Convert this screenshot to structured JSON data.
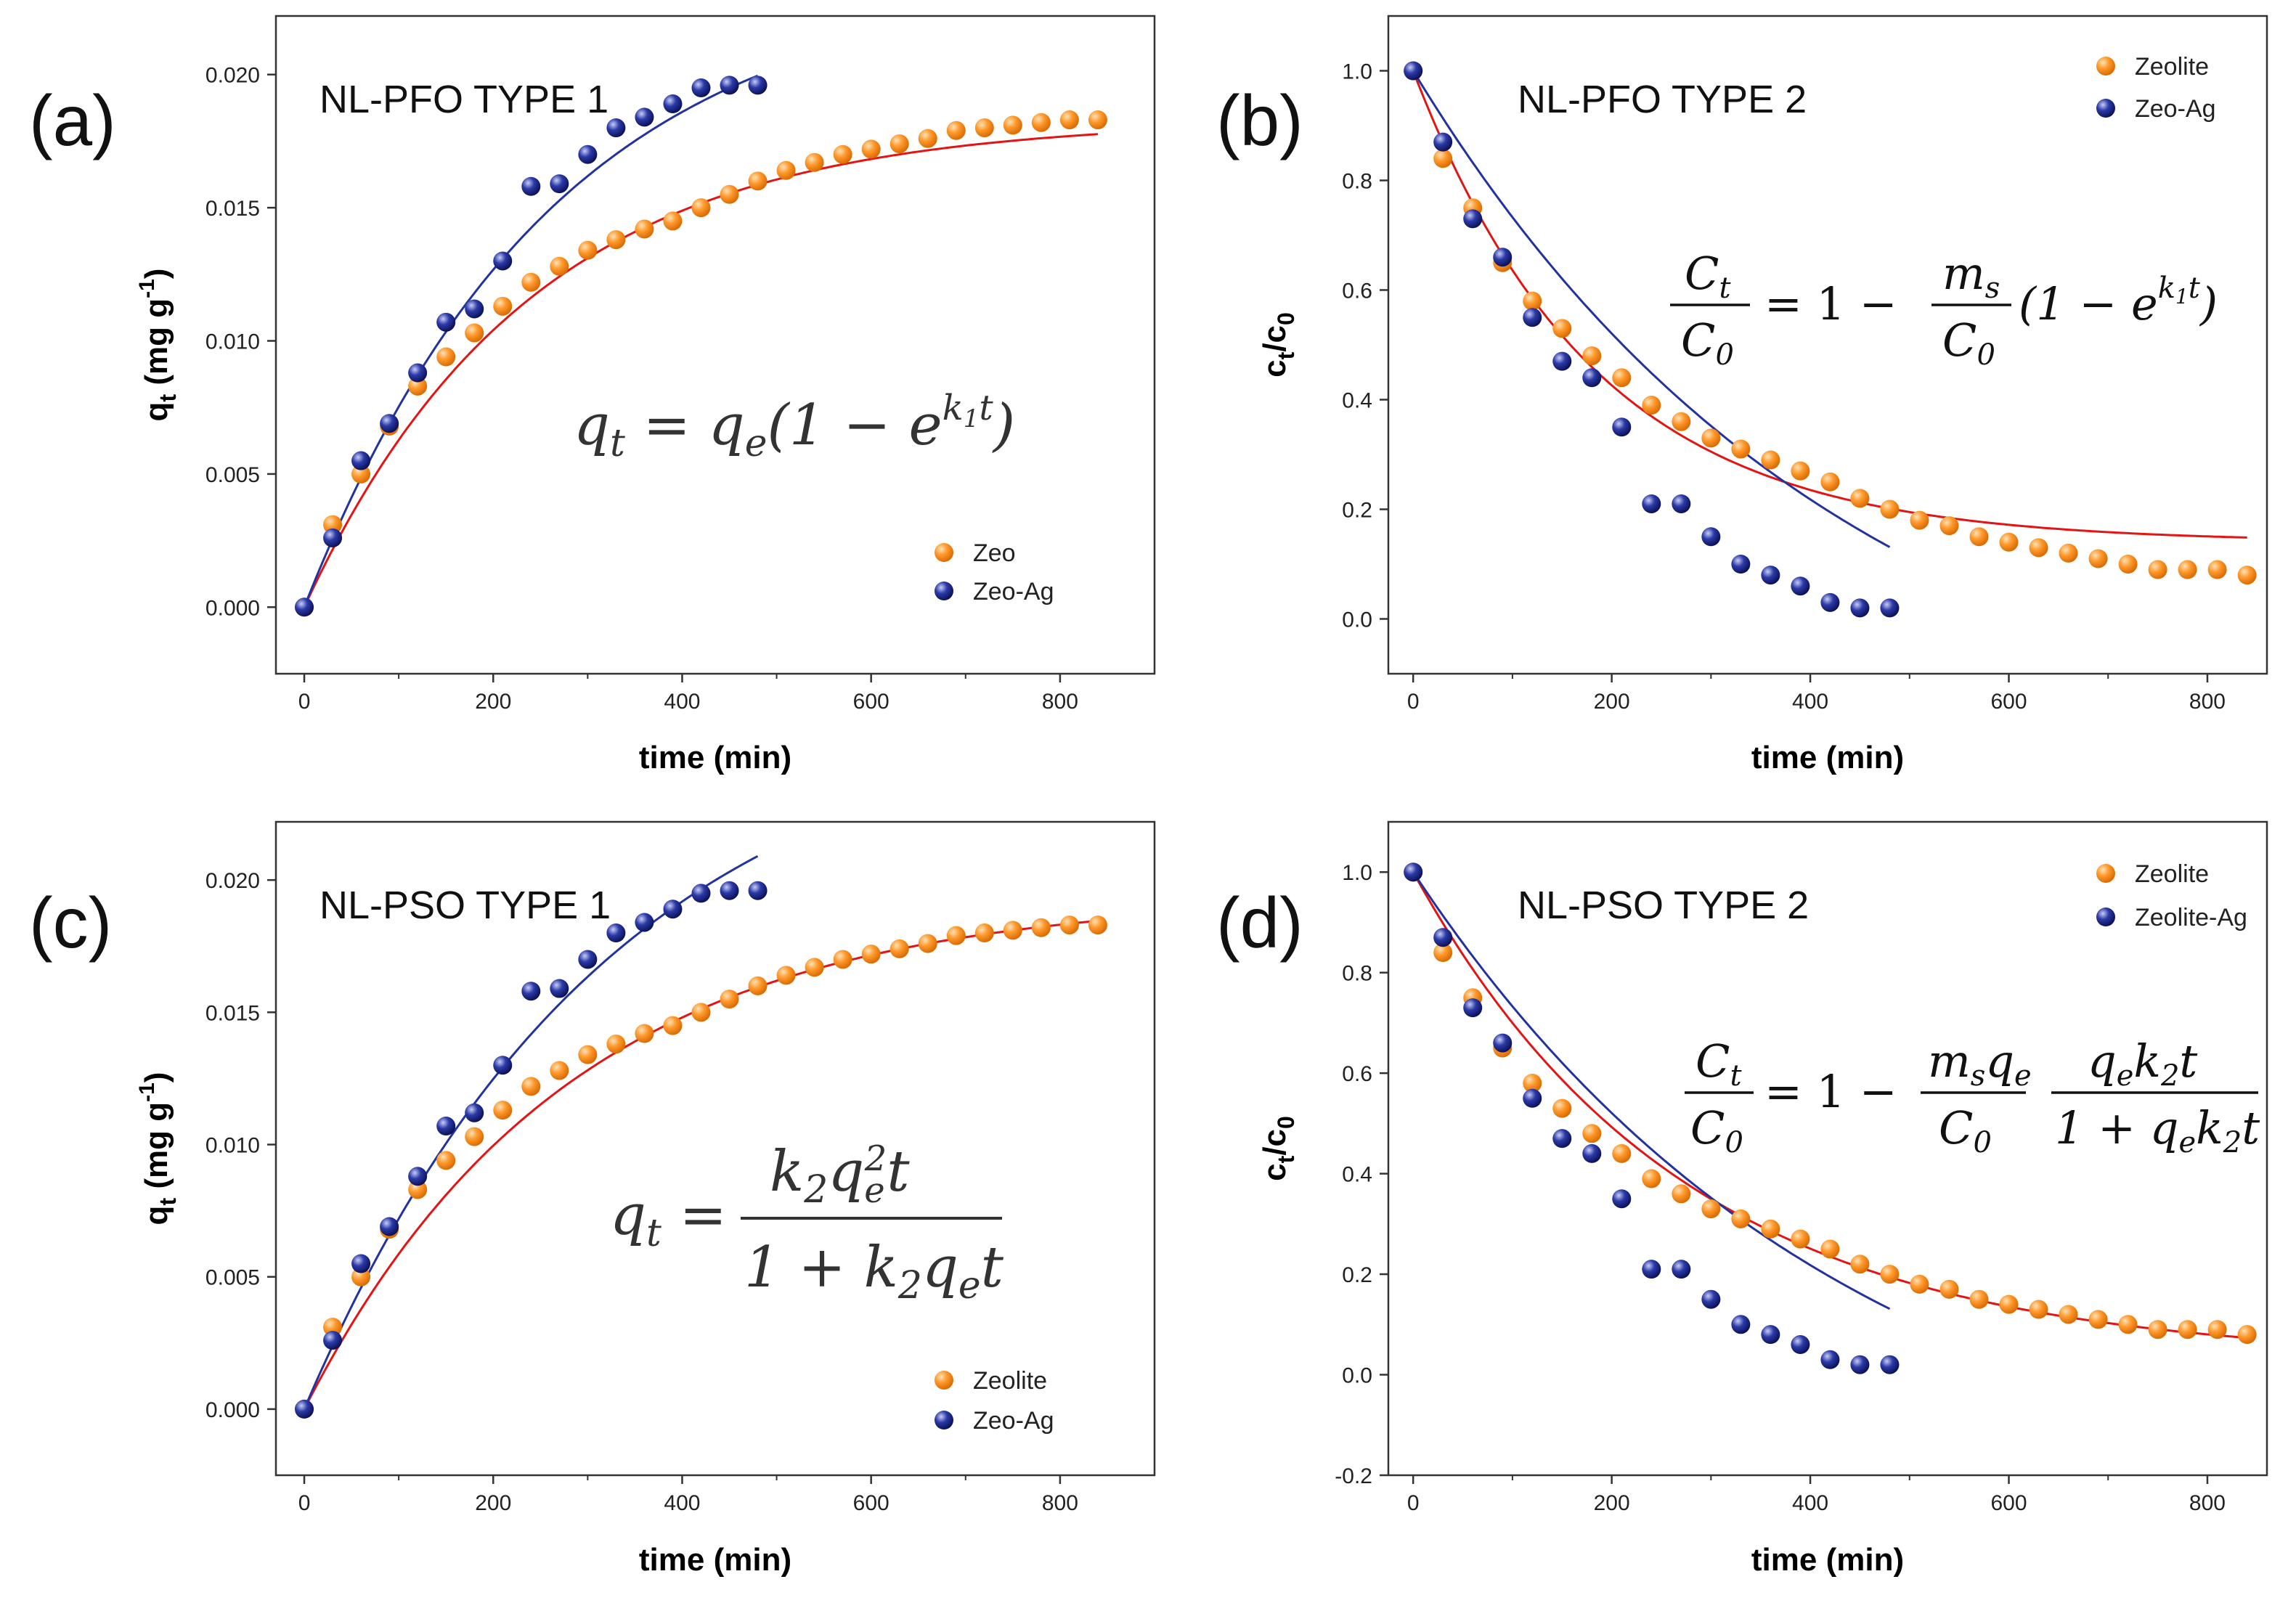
{
  "chart_data": [
    {
      "id": "a",
      "type": "scatter",
      "panel_label": "(a)",
      "title": "NL-PFO TYPE 1",
      "xlabel": "time (min)",
      "ylabel": "q_t (mg g^-1)",
      "xlim": [
        -30,
        900
      ],
      "ylim": [
        -0.0025,
        0.0222
      ],
      "xticks": [
        0,
        200,
        400,
        600,
        800
      ],
      "yticks": [
        0.0,
        0.005,
        0.01,
        0.015,
        0.02
      ],
      "ytick_decimals": 3,
      "legend_position": "bottom-right",
      "equation": "q_t = q_e(1 − e^{k1 t})",
      "series": [
        {
          "name": "Zeo",
          "color": "#ff8c1a",
          "x": [
            0,
            30,
            60,
            90,
            120,
            150,
            180,
            210,
            240,
            270,
            300,
            330,
            360,
            390,
            420,
            450,
            480,
            510,
            540,
            570,
            600,
            630,
            660,
            690,
            720,
            750,
            780,
            810,
            840
          ],
          "y": [
            0.0,
            0.0031,
            0.005,
            0.0068,
            0.0083,
            0.0094,
            0.0103,
            0.0113,
            0.0122,
            0.0128,
            0.0134,
            0.0138,
            0.0142,
            0.0145,
            0.015,
            0.0155,
            0.016,
            0.0164,
            0.0167,
            0.017,
            0.0172,
            0.0174,
            0.0176,
            0.0179,
            0.018,
            0.0181,
            0.0182,
            0.0183,
            0.0183
          ],
          "fit": {
            "model": "pfo",
            "a": 0.0183,
            "k": 0.0042,
            "xmax": 840,
            "color": "#e31414"
          }
        },
        {
          "name": "Zeo-Ag",
          "color": "#1a237e",
          "x": [
            0,
            30,
            60,
            90,
            120,
            150,
            180,
            210,
            240,
            270,
            300,
            330,
            360,
            390,
            420,
            450,
            480
          ],
          "y": [
            0.0,
            0.0026,
            0.0055,
            0.0069,
            0.0088,
            0.0107,
            0.0112,
            0.013,
            0.0158,
            0.0159,
            0.017,
            0.018,
            0.0184,
            0.0189,
            0.0195,
            0.0196,
            0.0196
          ],
          "fit": {
            "model": "pfo",
            "a": 0.0238,
            "k": 0.0038,
            "xmax": 480,
            "color": "#2233a0"
          }
        }
      ]
    },
    {
      "id": "b",
      "type": "scatter",
      "panel_label": "(b)",
      "title": "NL-PFO TYPE 2",
      "xlabel": "time (min)",
      "ylabel": "c_t/c_0",
      "xlim": [
        -25,
        860
      ],
      "ylim": [
        -0.1,
        1.1
      ],
      "xticks": [
        0,
        200,
        400,
        600,
        800
      ],
      "yticks": [
        0.0,
        0.2,
        0.4,
        0.6,
        0.8,
        1.0
      ],
      "ytick_decimals": 1,
      "legend_position": "top-right",
      "equation": "C_t/C_0 = 1 − (m_s/C_0)(1 − e^{k1 t})",
      "series": [
        {
          "name": "Zeolite",
          "color": "#ff8c1a",
          "x": [
            0,
            30,
            60,
            90,
            120,
            150,
            180,
            210,
            240,
            270,
            300,
            330,
            360,
            390,
            420,
            450,
            480,
            510,
            540,
            570,
            600,
            630,
            660,
            690,
            720,
            750,
            780,
            810,
            840
          ],
          "y": [
            1.0,
            0.84,
            0.75,
            0.65,
            0.58,
            0.53,
            0.48,
            0.44,
            0.39,
            0.36,
            0.33,
            0.31,
            0.29,
            0.27,
            0.25,
            0.22,
            0.2,
            0.18,
            0.17,
            0.15,
            0.14,
            0.13,
            0.12,
            0.11,
            0.1,
            0.09,
            0.09,
            0.09,
            0.08
          ],
          "fit": {
            "model": "decay",
            "a": 0.86,
            "k": 0.0055,
            "xmax": 840,
            "color": "#e31414"
          }
        },
        {
          "name": "Zeo-Ag",
          "color": "#1a237e",
          "x": [
            0,
            30,
            60,
            90,
            120,
            150,
            180,
            210,
            240,
            270,
            300,
            330,
            360,
            390,
            420,
            450,
            480
          ],
          "y": [
            1.0,
            0.87,
            0.73,
            0.66,
            0.55,
            0.47,
            0.44,
            0.35,
            0.21,
            0.21,
            0.15,
            0.1,
            0.08,
            0.06,
            0.03,
            0.02,
            0.02
          ],
          "fit": {
            "model": "decay",
            "a": 1.3,
            "k": 0.0023,
            "xmax": 480,
            "color": "#2233a0"
          }
        }
      ]
    },
    {
      "id": "c",
      "type": "scatter",
      "panel_label": "(c)",
      "title": "NL-PSO TYPE 1",
      "xlabel": "time (min)",
      "ylabel": "q_t (mg g^-1)",
      "xlim": [
        -30,
        900
      ],
      "ylim": [
        -0.0025,
        0.0222
      ],
      "xticks": [
        0,
        200,
        400,
        600,
        800
      ],
      "yticks": [
        0.0,
        0.005,
        0.01,
        0.015,
        0.02
      ],
      "ytick_decimals": 3,
      "legend_position": "bottom-right",
      "equation": "q_t = k2 q_e^2 t / (1 + k2 q_e t)",
      "series": [
        {
          "name": "Zeolite",
          "color": "#ff8c1a",
          "x": [
            0,
            30,
            60,
            90,
            120,
            150,
            180,
            210,
            240,
            270,
            300,
            330,
            360,
            390,
            420,
            450,
            480,
            510,
            540,
            570,
            600,
            630,
            660,
            690,
            720,
            750,
            780,
            810,
            840
          ],
          "y": [
            0.0,
            0.0031,
            0.005,
            0.0068,
            0.0083,
            0.0094,
            0.0103,
            0.0113,
            0.0122,
            0.0128,
            0.0134,
            0.0138,
            0.0142,
            0.0145,
            0.015,
            0.0155,
            0.016,
            0.0164,
            0.0167,
            0.017,
            0.0172,
            0.0174,
            0.0176,
            0.0179,
            0.018,
            0.0181,
            0.0182,
            0.0183,
            0.0183
          ],
          "fit": {
            "model": "pfo",
            "a": 0.0194,
            "k": 0.0036,
            "xmax": 840,
            "color": "#e31414"
          }
        },
        {
          "name": "Zeo-Ag",
          "color": "#1a237e",
          "x": [
            0,
            30,
            60,
            90,
            120,
            150,
            180,
            210,
            240,
            270,
            300,
            330,
            360,
            390,
            420,
            450,
            480
          ],
          "y": [
            0.0,
            0.0026,
            0.0055,
            0.0069,
            0.0088,
            0.0107,
            0.0112,
            0.013,
            0.0158,
            0.0159,
            0.017,
            0.018,
            0.0184,
            0.0189,
            0.0195,
            0.0196,
            0.0196
          ],
          "fit": {
            "model": "pfo",
            "a": 0.027,
            "k": 0.0031,
            "xmax": 480,
            "color": "#2233a0"
          }
        }
      ]
    },
    {
      "id": "d",
      "type": "scatter",
      "panel_label": "(d)",
      "title": "NL-PSO TYPE 2",
      "xlabel": "time (min)",
      "ylabel": "c_t/c_0",
      "xlim": [
        -25,
        860
      ],
      "ylim": [
        -0.2,
        1.1
      ],
      "xticks": [
        0,
        200,
        400,
        600,
        800
      ],
      "yticks": [
        -0.2,
        0.0,
        0.2,
        0.4,
        0.6,
        0.8,
        1.0
      ],
      "ytick_decimals": 1,
      "legend_position": "top-right",
      "equation": "C_t/C_0 = 1 − (m_s q_e / C_0)(q_e k2 t / (1 + q_e k2 t))",
      "series": [
        {
          "name": "Zeolite",
          "color": "#ff8c1a",
          "x": [
            0,
            30,
            60,
            90,
            120,
            150,
            180,
            210,
            240,
            270,
            300,
            330,
            360,
            390,
            420,
            450,
            480,
            510,
            540,
            570,
            600,
            630,
            660,
            690,
            720,
            750,
            780,
            810,
            840
          ],
          "y": [
            1.0,
            0.84,
            0.75,
            0.65,
            0.58,
            0.53,
            0.48,
            0.44,
            0.39,
            0.36,
            0.33,
            0.31,
            0.29,
            0.27,
            0.25,
            0.22,
            0.2,
            0.18,
            0.17,
            0.15,
            0.14,
            0.13,
            0.12,
            0.11,
            0.1,
            0.09,
            0.09,
            0.09,
            0.08
          ],
          "fit": {
            "model": "decay",
            "a": 0.97,
            "k": 0.0037,
            "xmax": 840,
            "color": "#e31414"
          }
        },
        {
          "name": "Zeolite-Ag",
          "color": "#1a237e",
          "x": [
            0,
            30,
            60,
            90,
            120,
            150,
            180,
            210,
            240,
            270,
            300,
            330,
            360,
            390,
            420,
            450,
            480
          ],
          "y": [
            1.0,
            0.87,
            0.73,
            0.66,
            0.55,
            0.47,
            0.44,
            0.35,
            0.21,
            0.21,
            0.15,
            0.1,
            0.08,
            0.06,
            0.03,
            0.02,
            0.02
          ],
          "fit": {
            "model": "decay",
            "a": 1.3,
            "k": 0.0023,
            "xmax": 480,
            "color": "#2233a0"
          }
        }
      ]
    }
  ]
}
